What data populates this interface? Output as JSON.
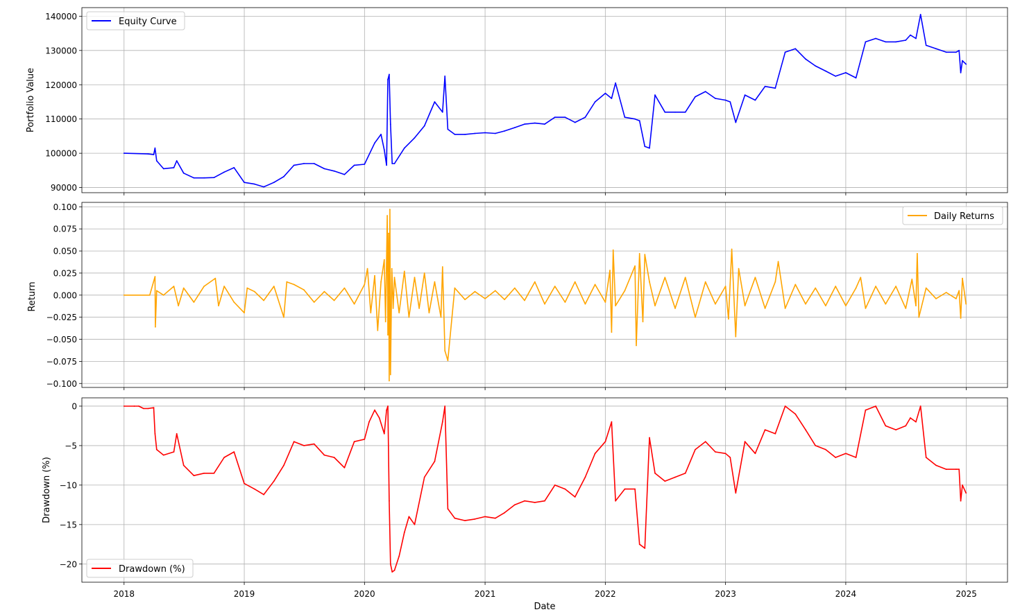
{
  "colors": {
    "equity": "#0000ff",
    "returns": "#ffa500",
    "drawdown": "#ff0000",
    "grid": "#b0b0b0",
    "axis": "#000000",
    "background": "#ffffff"
  },
  "chart_data": [
    {
      "type": "line",
      "xlabel": "",
      "ylabel": "Portfolio Value",
      "xlim": [
        "2017-08-26",
        "2025-05-06"
      ],
      "ylim": [
        88500,
        142500
      ],
      "yticks": [
        90000,
        100000,
        110000,
        120000,
        130000,
        140000
      ],
      "grid": true,
      "legend": "top-left",
      "series": [
        {
          "name": "Equity Curve",
          "color": "#0000ff",
          "x": [
            "2018-01-01",
            "2018-03-15",
            "2018-04-01",
            "2018-04-05",
            "2018-04-10",
            "2018-05-01",
            "2018-06-01",
            "2018-06-10",
            "2018-07-01",
            "2018-08-01",
            "2018-09-01",
            "2018-10-01",
            "2018-11-01",
            "2018-12-01",
            "2019-01-01",
            "2019-02-01",
            "2019-03-01",
            "2019-04-01",
            "2019-05-01",
            "2019-06-01",
            "2019-07-01",
            "2019-08-01",
            "2019-09-01",
            "2019-10-01",
            "2019-11-01",
            "2019-12-01",
            "2020-01-01",
            "2020-02-01",
            "2020-02-20",
            "2020-03-01",
            "2020-03-08",
            "2020-03-12",
            "2020-03-16",
            "2020-03-20",
            "2020-03-25",
            "2020-04-01",
            "2020-05-01",
            "2020-06-01",
            "2020-07-01",
            "2020-08-01",
            "2020-08-25",
            "2020-09-01",
            "2020-09-10",
            "2020-10-01",
            "2020-11-01",
            "2020-12-01",
            "2021-01-01",
            "2021-02-01",
            "2021-03-01",
            "2021-04-01",
            "2021-05-01",
            "2021-06-01",
            "2021-07-01",
            "2021-08-01",
            "2021-09-01",
            "2021-10-01",
            "2021-11-01",
            "2021-12-01",
            "2022-01-01",
            "2022-01-20",
            "2022-02-01",
            "2022-03-01",
            "2022-04-01",
            "2022-04-15",
            "2022-05-01",
            "2022-05-15",
            "2022-06-01",
            "2022-07-01",
            "2022-08-01",
            "2022-09-01",
            "2022-10-01",
            "2022-11-01",
            "2022-12-01",
            "2023-01-01",
            "2023-01-15",
            "2023-02-01",
            "2023-03-01",
            "2023-04-01",
            "2023-05-01",
            "2023-06-01",
            "2023-07-01",
            "2023-08-01",
            "2023-09-01",
            "2023-10-01",
            "2023-11-01",
            "2023-12-01",
            "2024-01-01",
            "2024-02-01",
            "2024-03-01",
            "2024-04-01",
            "2024-05-01",
            "2024-06-01",
            "2024-07-01",
            "2024-07-15",
            "2024-08-01",
            "2024-08-15",
            "2024-09-01",
            "2024-10-01",
            "2024-11-01",
            "2024-12-01",
            "2024-12-10",
            "2024-12-15",
            "2024-12-20",
            "2024-12-31"
          ],
          "values": [
            100000,
            99800,
            99600,
            101500,
            97800,
            95500,
            95800,
            97800,
            94200,
            92800,
            92800,
            92900,
            94500,
            95800,
            91500,
            91000,
            90200,
            91500,
            93200,
            96500,
            97000,
            97000,
            95500,
            94800,
            93800,
            96500,
            96800,
            103000,
            105500,
            101000,
            96500,
            121500,
            123000,
            108500,
            97000,
            97000,
            101500,
            104500,
            108000,
            115000,
            112000,
            122500,
            107000,
            105500,
            105500,
            105800,
            106000,
            105800,
            106500,
            107500,
            108500,
            108800,
            108500,
            110500,
            110500,
            109000,
            110500,
            115000,
            117500,
            116000,
            120500,
            110500,
            110000,
            109500,
            102000,
            101500,
            117000,
            112000,
            112000,
            112000,
            116500,
            118000,
            116000,
            115500,
            115000,
            109000,
            117000,
            115500,
            119500,
            119000,
            129500,
            130500,
            127500,
            125500,
            124000,
            122500,
            123500,
            122000,
            132500,
            133500,
            132500,
            132500,
            133000,
            134500,
            133500,
            140500,
            131500,
            130500,
            129500,
            129500,
            130000,
            123500,
            127000,
            126000
          ]
        }
      ]
    },
    {
      "type": "line",
      "xlabel": "",
      "ylabel": "Return",
      "xlim": [
        "2017-08-26",
        "2025-05-06"
      ],
      "ylim": [
        -0.1045,
        0.105
      ],
      "yticks": [
        -0.1,
        -0.075,
        -0.05,
        -0.025,
        0.0,
        0.025,
        0.05,
        0.075,
        0.1
      ],
      "grid": true,
      "legend": "top-right",
      "series": [
        {
          "name": "Daily Returns",
          "color": "#ffa500",
          "x": [
            "2018-01-01",
            "2018-03-20",
            "2018-04-05",
            "2018-04-06",
            "2018-04-10",
            "2018-05-01",
            "2018-06-01",
            "2018-06-15",
            "2018-07-01",
            "2018-08-01",
            "2018-09-01",
            "2018-10-05",
            "2018-10-15",
            "2018-11-01",
            "2018-12-01",
            "2019-01-01",
            "2019-01-10",
            "2019-02-01",
            "2019-03-01",
            "2019-04-01",
            "2019-05-01",
            "2019-05-10",
            "2019-06-01",
            "2019-07-01",
            "2019-08-01",
            "2019-09-01",
            "2019-10-01",
            "2019-11-01",
            "2019-12-01",
            "2020-01-01",
            "2020-01-10",
            "2020-01-20",
            "2020-02-01",
            "2020-02-10",
            "2020-02-20",
            "2020-03-01",
            "2020-03-05",
            "2020-03-10",
            "2020-03-12",
            "2020-03-14",
            "2020-03-16",
            "2020-03-18",
            "2020-03-20",
            "2020-03-24",
            "2020-03-28",
            "2020-04-01",
            "2020-04-15",
            "2020-05-01",
            "2020-05-15",
            "2020-06-01",
            "2020-06-15",
            "2020-07-01",
            "2020-07-15",
            "2020-08-01",
            "2020-08-20",
            "2020-08-25",
            "2020-09-01",
            "2020-09-10",
            "2020-10-01",
            "2020-11-01",
            "2020-12-01",
            "2021-01-01",
            "2021-02-01",
            "2021-03-01",
            "2021-04-01",
            "2021-05-01",
            "2021-06-01",
            "2021-07-01",
            "2021-08-01",
            "2021-09-01",
            "2021-10-01",
            "2021-11-01",
            "2021-12-01",
            "2022-01-01",
            "2022-01-15",
            "2022-01-20",
            "2022-01-25",
            "2022-02-01",
            "2022-03-01",
            "2022-04-01",
            "2022-04-05",
            "2022-04-15",
            "2022-04-25",
            "2022-05-01",
            "2022-05-15",
            "2022-06-01",
            "2022-07-01",
            "2022-08-01",
            "2022-09-01",
            "2022-10-01",
            "2022-11-01",
            "2022-12-01",
            "2023-01-01",
            "2023-01-10",
            "2023-01-20",
            "2023-02-01",
            "2023-02-10",
            "2023-03-01",
            "2023-04-01",
            "2023-05-01",
            "2023-06-01",
            "2023-06-10",
            "2023-07-01",
            "2023-08-01",
            "2023-09-01",
            "2023-10-01",
            "2023-11-01",
            "2023-12-01",
            "2024-01-01",
            "2024-02-01",
            "2024-02-15",
            "2024-03-01",
            "2024-04-01",
            "2024-05-01",
            "2024-06-01",
            "2024-07-01",
            "2024-07-20",
            "2024-08-01",
            "2024-08-05",
            "2024-08-10",
            "2024-09-01",
            "2024-10-01",
            "2024-11-01",
            "2024-12-01",
            "2024-12-10",
            "2024-12-15",
            "2024-12-20",
            "2024-12-31"
          ],
          "values": [
            0.0,
            0.0,
            0.021,
            -0.036,
            0.005,
            0.0,
            0.01,
            -0.012,
            0.008,
            -0.008,
            0.01,
            0.019,
            -0.012,
            0.01,
            -0.008,
            -0.02,
            0.008,
            0.004,
            -0.006,
            0.01,
            -0.025,
            0.015,
            0.012,
            0.006,
            -0.008,
            0.004,
            -0.006,
            0.008,
            -0.01,
            0.012,
            0.03,
            -0.02,
            0.022,
            -0.04,
            0.015,
            0.04,
            -0.03,
            0.09,
            -0.045,
            0.07,
            -0.097,
            0.097,
            -0.09,
            0.03,
            -0.015,
            0.02,
            -0.02,
            0.027,
            -0.025,
            0.02,
            -0.015,
            0.025,
            -0.02,
            0.015,
            -0.025,
            0.032,
            -0.063,
            -0.074,
            0.008,
            -0.005,
            0.004,
            -0.004,
            0.005,
            -0.005,
            0.008,
            -0.006,
            0.015,
            -0.01,
            0.01,
            -0.008,
            0.015,
            -0.01,
            0.012,
            -0.008,
            0.028,
            -0.042,
            0.051,
            -0.012,
            0.005,
            0.033,
            -0.057,
            0.047,
            -0.03,
            0.046,
            0.015,
            -0.012,
            0.02,
            -0.015,
            0.02,
            -0.025,
            0.015,
            -0.01,
            0.01,
            -0.027,
            0.052,
            -0.047,
            0.03,
            -0.012,
            0.02,
            -0.015,
            0.015,
            0.038,
            -0.015,
            0.012,
            -0.01,
            0.008,
            -0.012,
            0.01,
            -0.012,
            0.008,
            0.02,
            -0.015,
            0.01,
            -0.01,
            0.01,
            -0.015,
            0.018,
            -0.012,
            0.047,
            -0.025,
            0.008,
            -0.004,
            0.003,
            -0.004,
            0.005,
            -0.026,
            0.019,
            -0.01
          ]
        }
      ]
    },
    {
      "type": "line",
      "xlabel": "Date",
      "ylabel": "Drawdown (%)",
      "xlim": [
        "2017-08-26",
        "2025-05-06"
      ],
      "ylim": [
        -22.3,
        1.05
      ],
      "yticks": [
        -20,
        -15,
        -10,
        -5,
        0
      ],
      "xticks": [
        "2018",
        "2019",
        "2020",
        "2021",
        "2022",
        "2023",
        "2024",
        "2025"
      ],
      "grid": true,
      "legend": "bottom-left",
      "series": [
        {
          "name": "Drawdown (%)",
          "color": "#ff0000",
          "x": [
            "2018-01-01",
            "2018-02-01",
            "2018-02-15",
            "2018-03-01",
            "2018-03-15",
            "2018-04-01",
            "2018-04-05",
            "2018-04-10",
            "2018-05-01",
            "2018-06-01",
            "2018-06-10",
            "2018-07-01",
            "2018-08-01",
            "2018-09-01",
            "2018-10-01",
            "2018-11-01",
            "2018-12-01",
            "2019-01-01",
            "2019-02-01",
            "2019-03-01",
            "2019-04-01",
            "2019-05-01",
            "2019-06-01",
            "2019-07-01",
            "2019-08-01",
            "2019-09-01",
            "2019-10-01",
            "2019-11-01",
            "2019-12-01",
            "2020-01-01",
            "2020-01-15",
            "2020-02-01",
            "2020-02-15",
            "2020-03-01",
            "2020-03-08",
            "2020-03-12",
            "2020-03-16",
            "2020-03-20",
            "2020-03-25",
            "2020-04-01",
            "2020-04-15",
            "2020-05-01",
            "2020-05-15",
            "2020-06-01",
            "2020-07-01",
            "2020-08-01",
            "2020-08-25",
            "2020-09-01",
            "2020-09-10",
            "2020-10-01",
            "2020-11-01",
            "2020-12-01",
            "2021-01-01",
            "2021-02-01",
            "2021-03-01",
            "2021-04-01",
            "2021-05-01",
            "2021-06-01",
            "2021-07-01",
            "2021-08-01",
            "2021-09-01",
            "2021-10-01",
            "2021-11-01",
            "2021-12-01",
            "2022-01-01",
            "2022-01-20",
            "2022-02-01",
            "2022-03-01",
            "2022-04-01",
            "2022-04-15",
            "2022-05-01",
            "2022-05-15",
            "2022-06-01",
            "2022-07-01",
            "2022-08-01",
            "2022-09-01",
            "2022-10-01",
            "2022-11-01",
            "2022-12-01",
            "2023-01-01",
            "2023-01-15",
            "2023-02-01",
            "2023-03-01",
            "2023-04-01",
            "2023-05-01",
            "2023-06-01",
            "2023-07-01",
            "2023-08-01",
            "2023-09-01",
            "2023-10-01",
            "2023-11-01",
            "2023-12-01",
            "2024-01-01",
            "2024-02-01",
            "2024-03-01",
            "2024-04-01",
            "2024-05-01",
            "2024-06-01",
            "2024-07-01",
            "2024-07-15",
            "2024-08-01",
            "2024-08-15",
            "2024-09-01",
            "2024-10-01",
            "2024-11-01",
            "2024-12-01",
            "2024-12-10",
            "2024-12-15",
            "2024-12-20",
            "2024-12-31"
          ],
          "values": [
            0.0,
            0.0,
            0.0,
            -0.3,
            -0.3,
            -0.2,
            -3.5,
            -5.5,
            -6.2,
            -5.8,
            -3.5,
            -7.5,
            -8.8,
            -8.5,
            -8.5,
            -6.5,
            -5.8,
            -9.8,
            -10.5,
            -11.2,
            -9.5,
            -7.5,
            -4.5,
            -5.0,
            -4.8,
            -6.2,
            -6.5,
            -7.8,
            -4.5,
            -4.2,
            -2.0,
            -0.5,
            -1.5,
            -3.5,
            -0.5,
            0.0,
            -12.0,
            -20.0,
            -21.0,
            -20.8,
            -19.0,
            -16.0,
            -14.0,
            -15.0,
            -9.0,
            -7.0,
            -2.0,
            0.0,
            -13.0,
            -14.2,
            -14.5,
            -14.3,
            -14.0,
            -14.2,
            -13.5,
            -12.5,
            -12.0,
            -12.2,
            -12.0,
            -10.0,
            -10.5,
            -11.5,
            -9.0,
            -6.0,
            -4.5,
            -2.0,
            -12.0,
            -10.5,
            -10.5,
            -17.5,
            -18.0,
            -4.0,
            -8.5,
            -9.5,
            -9.0,
            -8.5,
            -5.5,
            -4.5,
            -5.8,
            -6.0,
            -6.5,
            -11.0,
            -4.5,
            -6.0,
            -3.0,
            -3.5,
            0.0,
            -1.0,
            -3.0,
            -5.0,
            -5.5,
            -6.5,
            -6.0,
            -6.5,
            -0.5,
            0.0,
            -2.5,
            -3.0,
            -2.5,
            -1.5,
            -2.0,
            0.0,
            -6.5,
            -7.5,
            -8.0,
            -8.0,
            -8.0,
            -12.0,
            -10.0,
            -11.0
          ]
        }
      ]
    }
  ]
}
